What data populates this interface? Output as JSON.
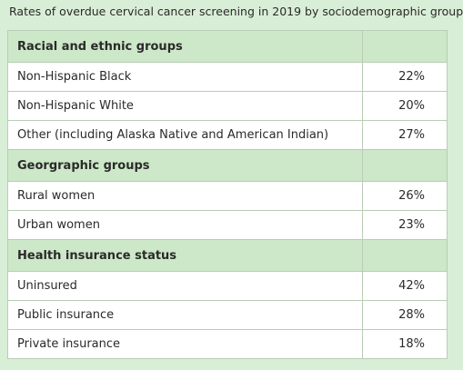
{
  "table": {
    "title": "Rates of overdue cervical cancer screening in 2019 by sociodemographic group",
    "sections": [
      {
        "heading": "Racial and ethnic groups",
        "rows": [
          [
            "Non-Hispanic Black",
            "22%"
          ],
          [
            "Non-Hispanic White",
            "20%"
          ],
          [
            "Other (including Alaska Native and American Indian)",
            "27%"
          ]
        ]
      },
      {
        "heading": "Georgraphic groups",
        "rows": [
          [
            "Rural women",
            "26%"
          ],
          [
            "Urban women",
            "23%"
          ]
        ]
      },
      {
        "heading": "Health insurance status",
        "rows": [
          [
            "Uninsured",
            "42%"
          ],
          [
            "Public insurance",
            "28%"
          ],
          [
            "Private insurance",
            "18%"
          ]
        ]
      }
    ]
  }
}
